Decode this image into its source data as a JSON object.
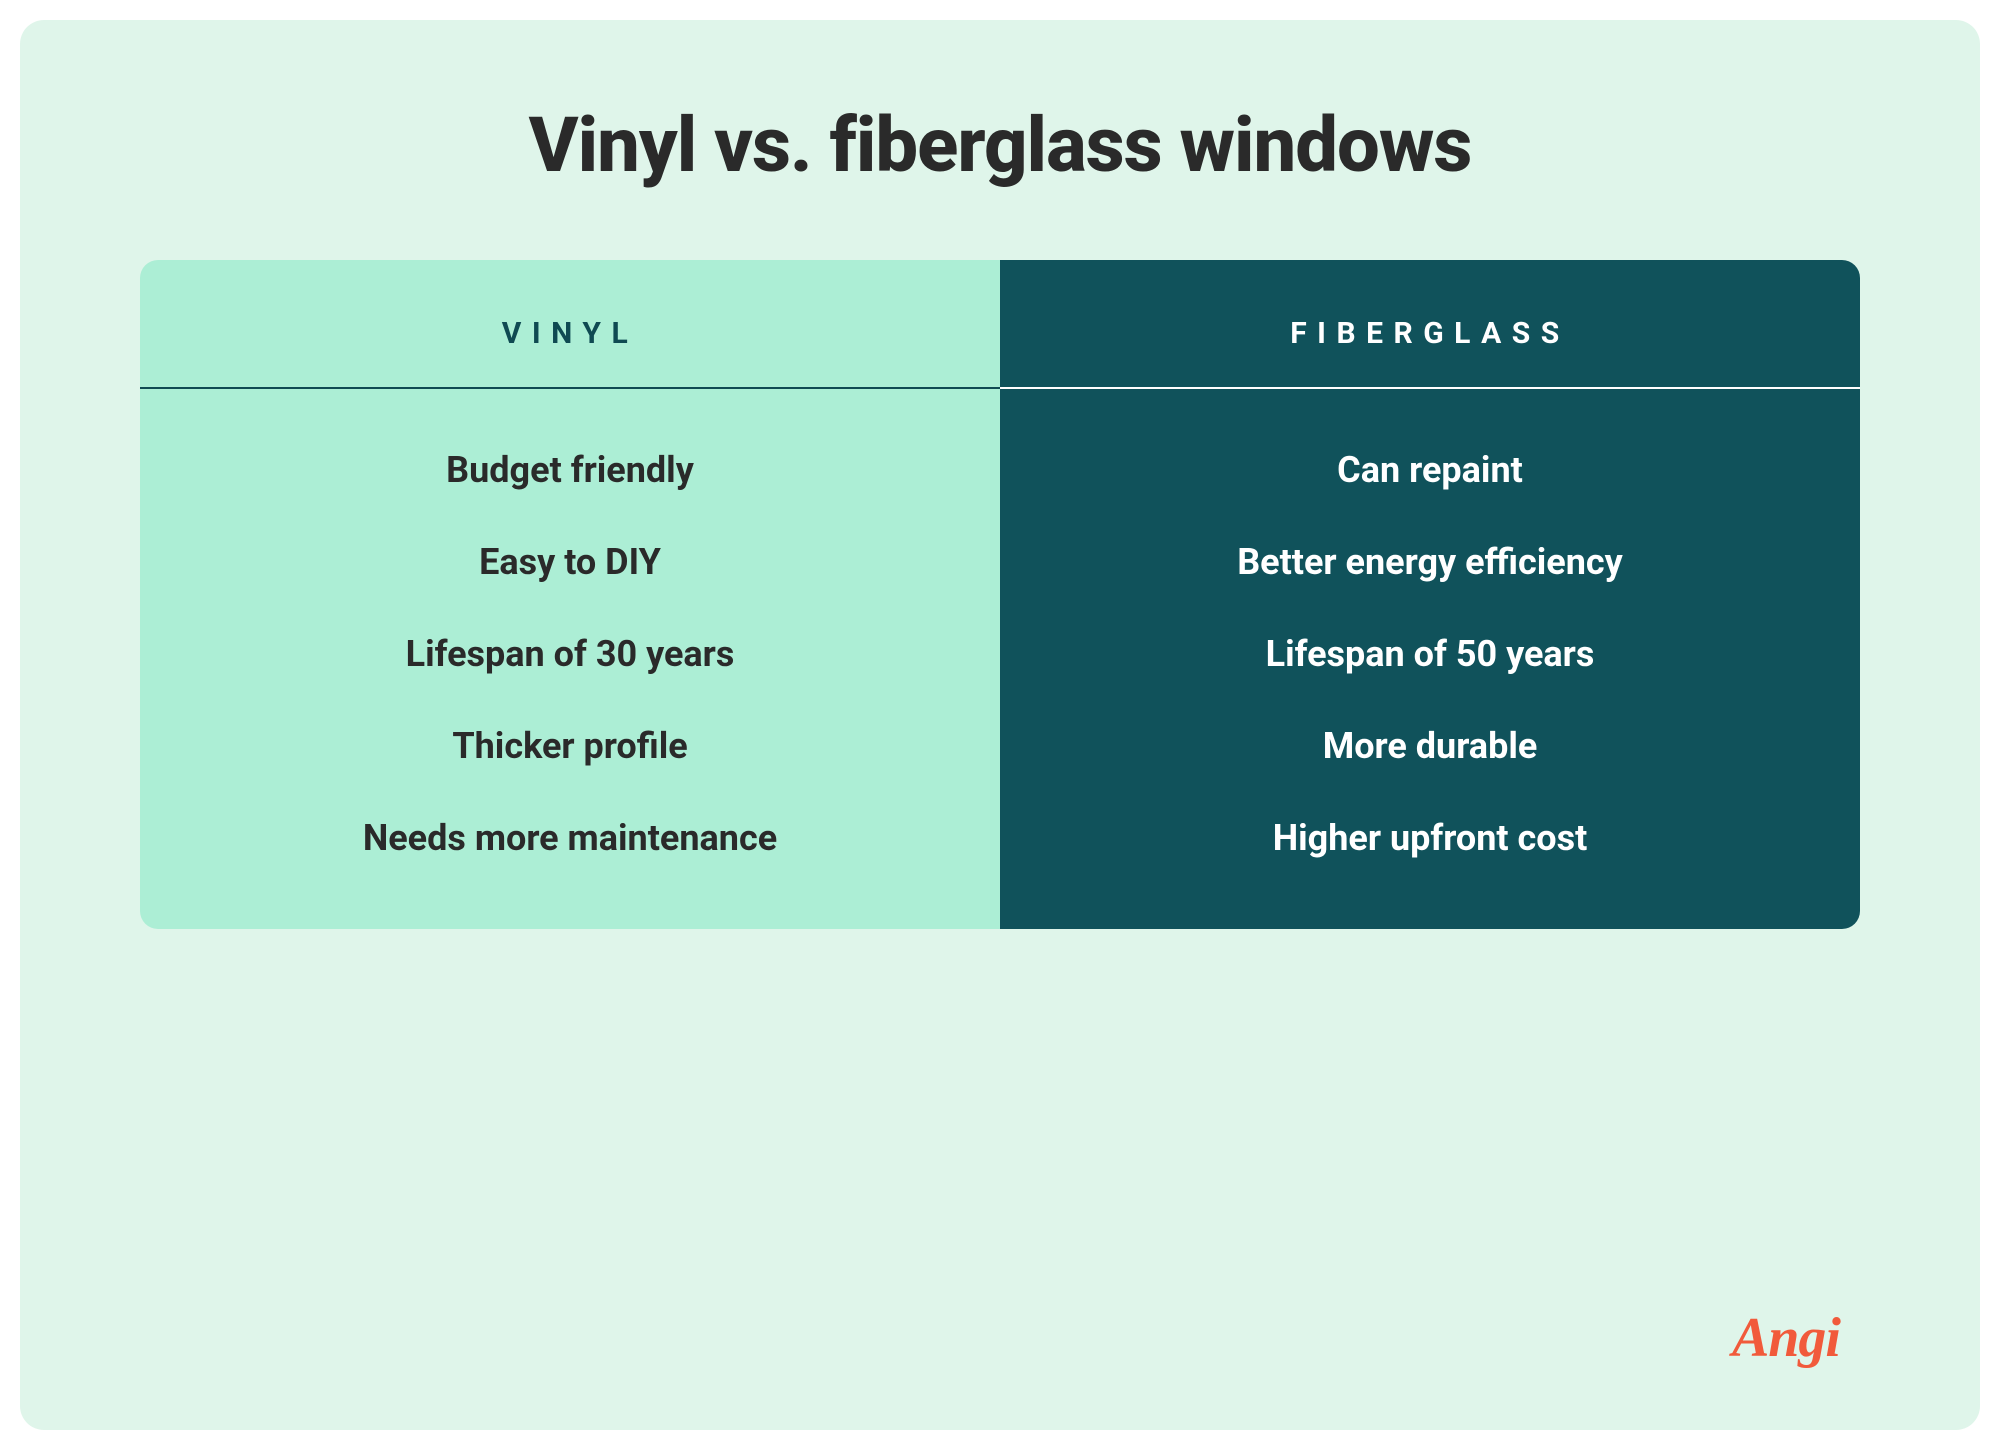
{
  "title": "Vinyl vs. fiberglass windows",
  "card_background": "#dff5ea",
  "title_color": "#2a2a2a",
  "title_fontsize": 76,
  "table": {
    "border_radius": 18,
    "columns": [
      {
        "header": "VINYL",
        "header_color": "#0f4a52",
        "header_fontsize": 30,
        "header_divider_color": "#0f4a52",
        "background": "#aceed5",
        "text_color": "#2a2a2a",
        "item_fontsize": 36,
        "items": [
          "Budget friendly",
          "Easy to DIY",
          "Lifespan of 30 years",
          "Thicker profile",
          "Needs more maintenance"
        ]
      },
      {
        "header": "FIBERGLASS",
        "header_color": "#ffffff",
        "header_fontsize": 30,
        "header_divider_color": "#ffffff",
        "background": "#10525b",
        "text_color": "#ffffff",
        "item_fontsize": 36,
        "items": [
          "Can repaint",
          "Better energy efficiency",
          "Lifespan of 50 years",
          "More durable",
          "Higher upfront cost"
        ]
      }
    ]
  },
  "logo": {
    "text": "Angi",
    "color": "#f15a3b",
    "fontsize": 56
  }
}
